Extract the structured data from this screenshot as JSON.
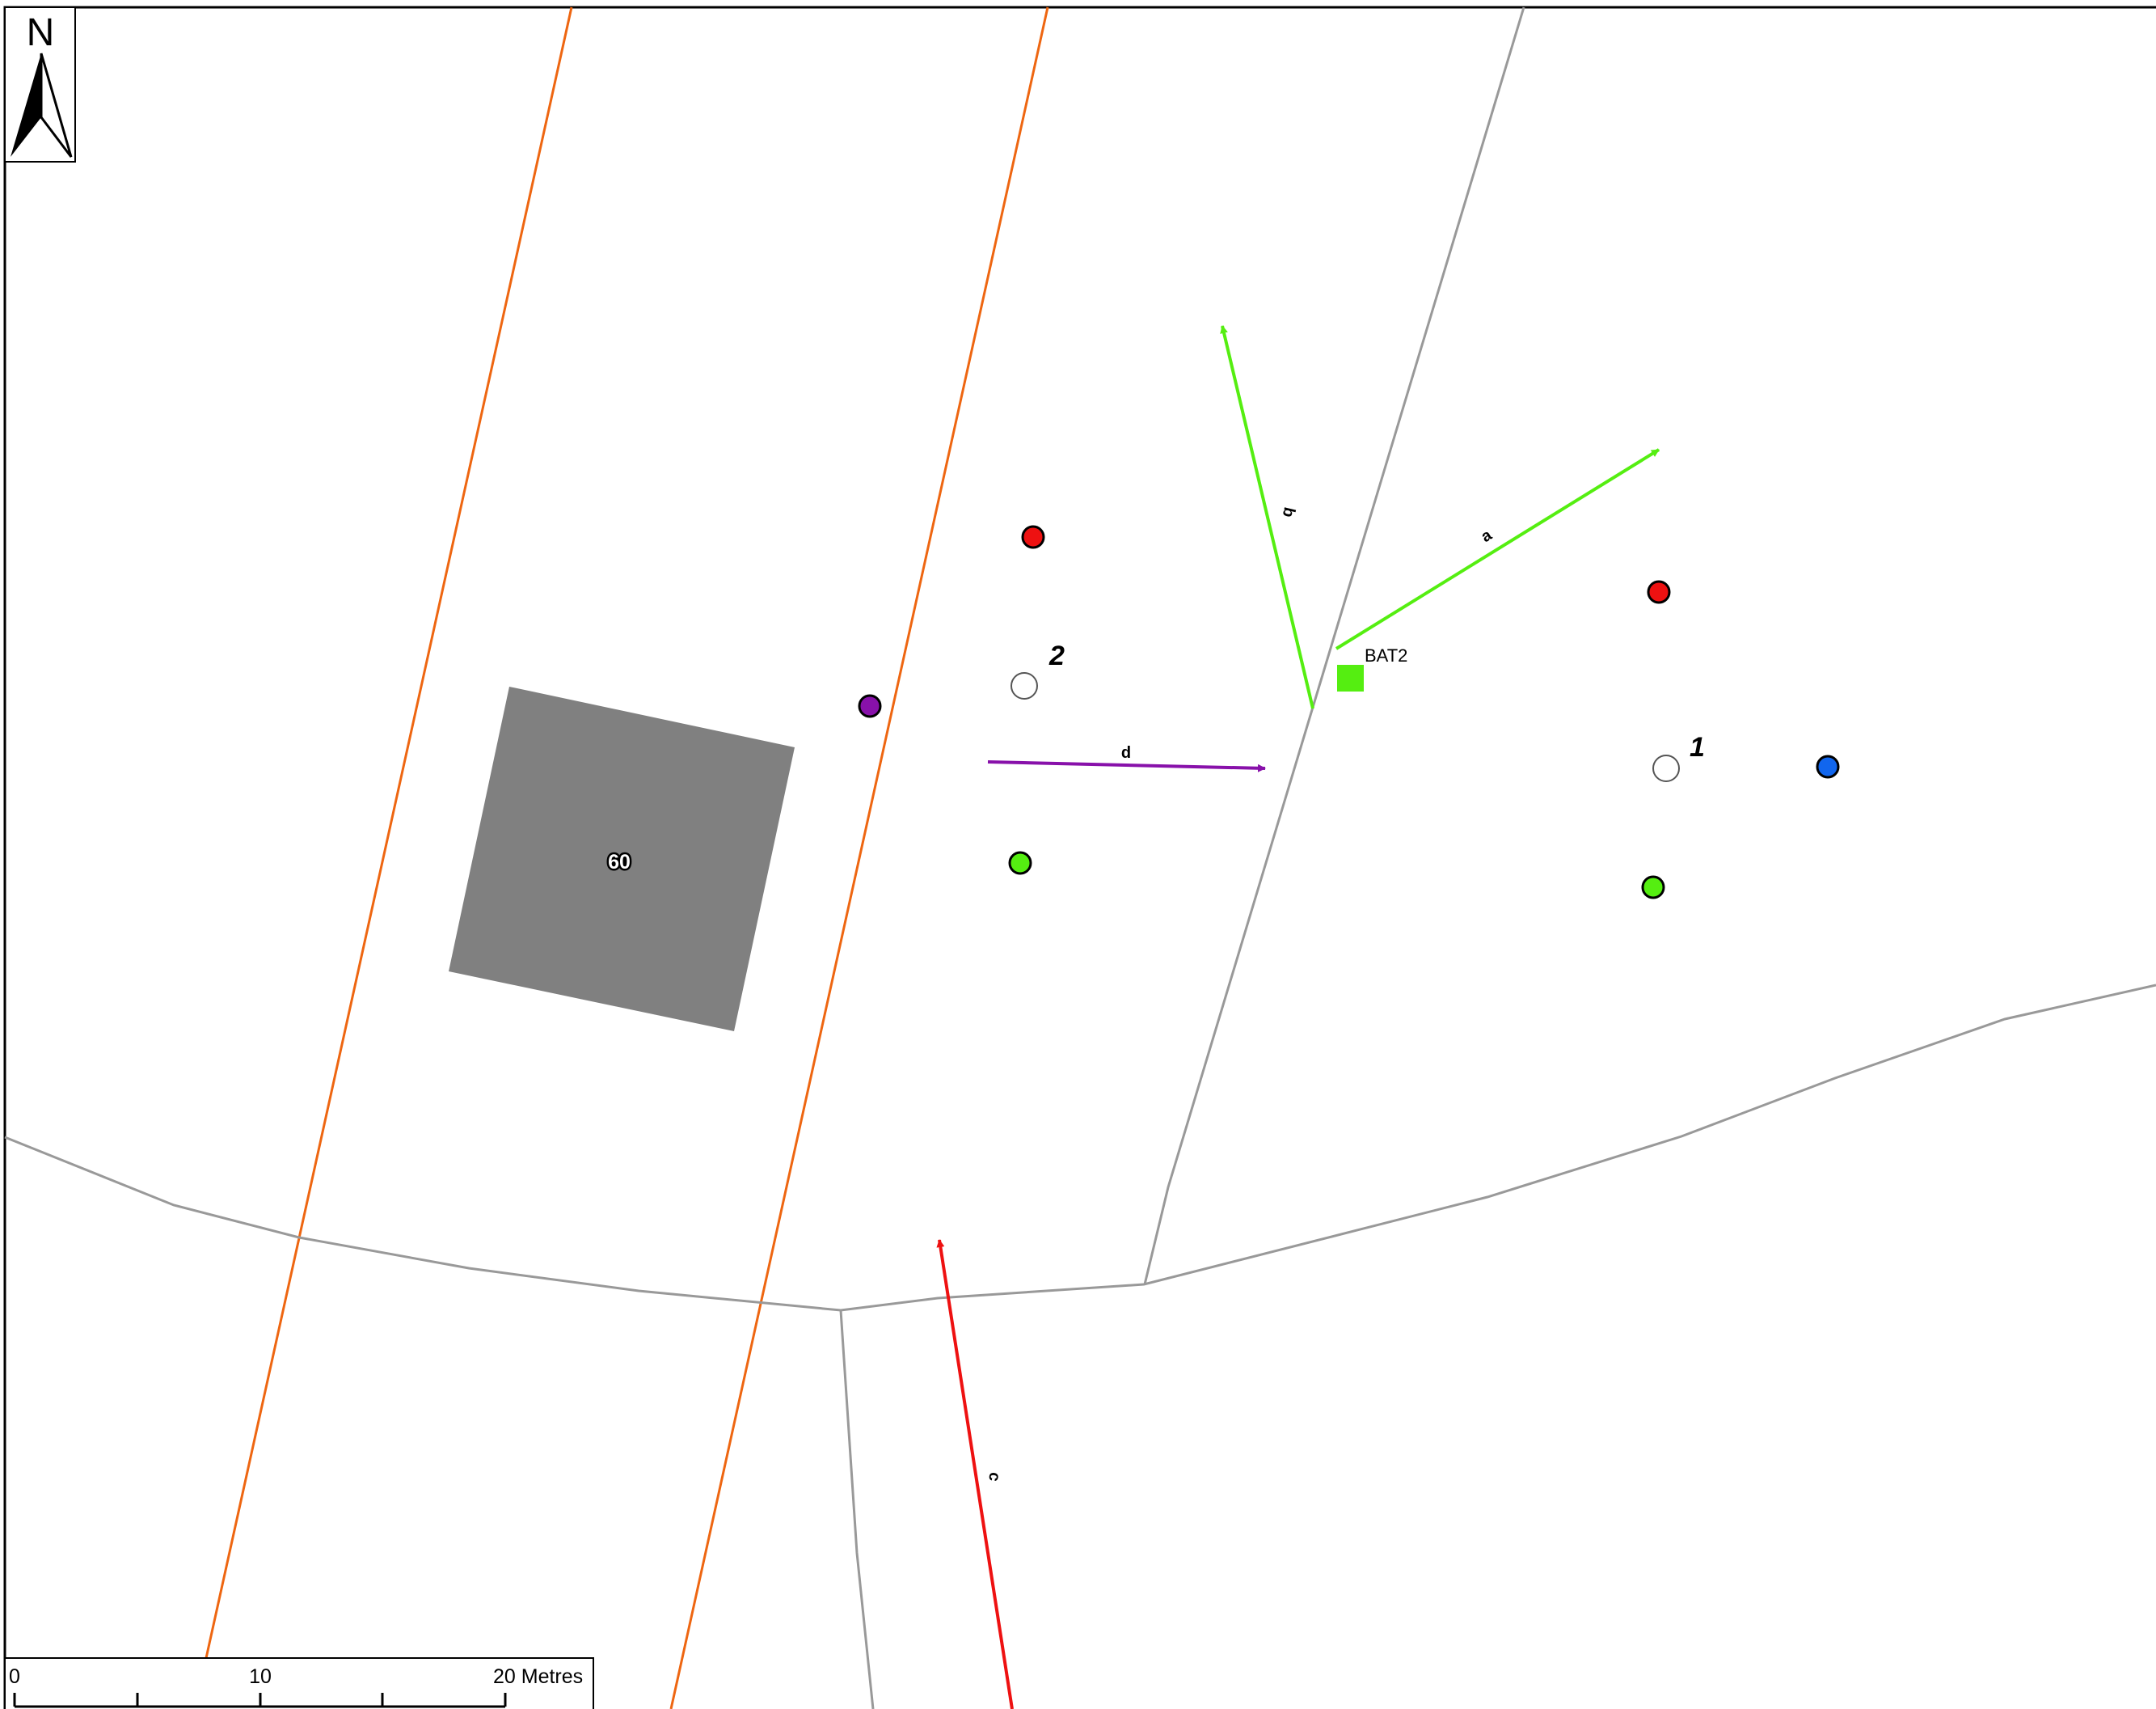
{
  "north_arrow": {
    "label": "N"
  },
  "building": {
    "label": "60"
  },
  "survey_points": [
    {
      "label": "1"
    },
    {
      "label": "2"
    }
  ],
  "station": {
    "label": "BAT2"
  },
  "transects": [
    {
      "label": "a",
      "color": "#55ee11"
    },
    {
      "label": "b",
      "color": "#55ee11"
    },
    {
      "label": "c",
      "color": "#ee1111"
    },
    {
      "label": "d",
      "color": "#8811aa"
    }
  ],
  "markers": [
    {
      "name": "red",
      "color": "#ee1111"
    },
    {
      "name": "green",
      "color": "#55ee11"
    },
    {
      "name": "purple",
      "color": "#8811aa"
    },
    {
      "name": "blue",
      "color": "#1166ee"
    }
  ],
  "colors": {
    "road_edge": "#ee6611",
    "boundary": "#999999",
    "building_fill": "#808080"
  },
  "scale_bar": {
    "labels": [
      "0",
      "10",
      "20 Metres"
    ]
  }
}
